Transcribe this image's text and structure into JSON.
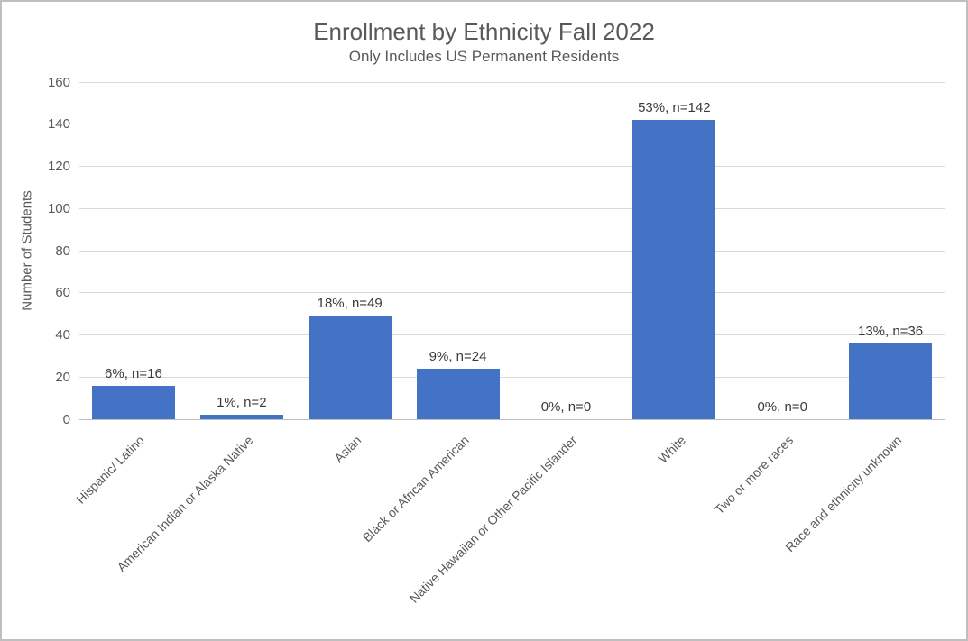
{
  "chart": {
    "title": "Enrollment by Ethnicity Fall 2022",
    "subtitle": "Only Includes US Permanent Residents"
  },
  "chart_data": {
    "type": "bar",
    "title": "Enrollment by Ethnicity Fall 2022",
    "subtitle": "Only Includes US Permanent Residents",
    "xlabel": "",
    "ylabel": "Number of Students",
    "ylim": [
      0,
      160
    ],
    "ytick_step": 20,
    "ytick_labels": [
      "0",
      "20",
      "40",
      "60",
      "80",
      "100",
      "120",
      "140",
      "160"
    ],
    "grid": true,
    "legend": "none",
    "categories": [
      "Hispanic/ Latino",
      "American Indian or Alaska Native",
      "Asian",
      "Black or African American",
      "Native Hawaiian or Other Pacific Islander",
      "White",
      "Two or more races",
      "Race and ethnicity unknown"
    ],
    "values": [
      16,
      2,
      49,
      24,
      0,
      142,
      0,
      36
    ],
    "percentages": [
      6,
      1,
      18,
      9,
      0,
      53,
      0,
      13
    ],
    "data_labels": [
      "6%, n=16",
      "1%, n=2",
      "18%, n=49",
      "9%, n=24",
      "0%, n=0",
      "53%, n=142",
      "0%, n=0",
      "13%, n=36"
    ],
    "colors": {
      "bar": "#4472c4",
      "gridline": "#d9d9d9",
      "axis_line": "#bfbfbf",
      "frame_border": "#bfbfbf",
      "text": "#595959",
      "data_label": "#3a3a3a",
      "background": "#ffffff"
    }
  }
}
